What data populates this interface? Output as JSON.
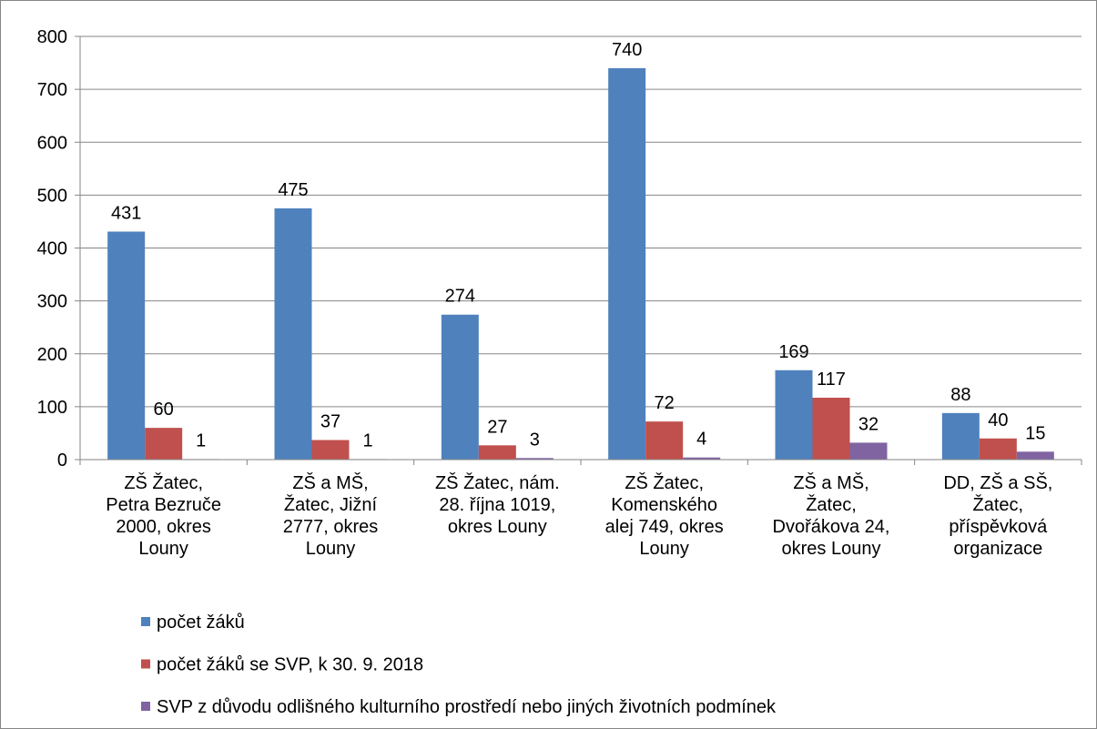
{
  "chart_data": {
    "type": "bar",
    "categories": [
      "ZŠ Žatec,\nPetra Bezruče\n2000, okres\nLouny",
      "ZŠ a MŠ,\nŽatec, Jižní\n2777, okres\nLouny",
      "ZŠ Žatec, nám.\n28. října 1019,\nokres Louny",
      "ZŠ Žatec,\nKomenského\nalej 749, okres\nLouny",
      "ZŠ a MŠ,\nŽatec,\nDvořákova 24,\nokres Louny",
      "DD, ZŠ a SŠ,\nŽatec,\npříspěvková\norganizace"
    ],
    "series": [
      {
        "name": "počet žáků",
        "color": "#4f81bd",
        "values": [
          431,
          475,
          274,
          740,
          169,
          88
        ]
      },
      {
        "name": "počet žáků se SVP, k 30. 9. 2018",
        "color": "#c0504d",
        "values": [
          60,
          37,
          27,
          72,
          117,
          40
        ]
      },
      {
        "name": "SVP z důvodu odlišného kulturního prostředí nebo jiných životních podmínek",
        "color": "#8064a2",
        "values": [
          1,
          1,
          3,
          4,
          32,
          15
        ]
      }
    ],
    "ylim": [
      0,
      800
    ],
    "yticks": [
      0,
      100,
      200,
      300,
      400,
      500,
      600,
      700,
      800
    ],
    "grid": true,
    "legend": "bottom"
  }
}
